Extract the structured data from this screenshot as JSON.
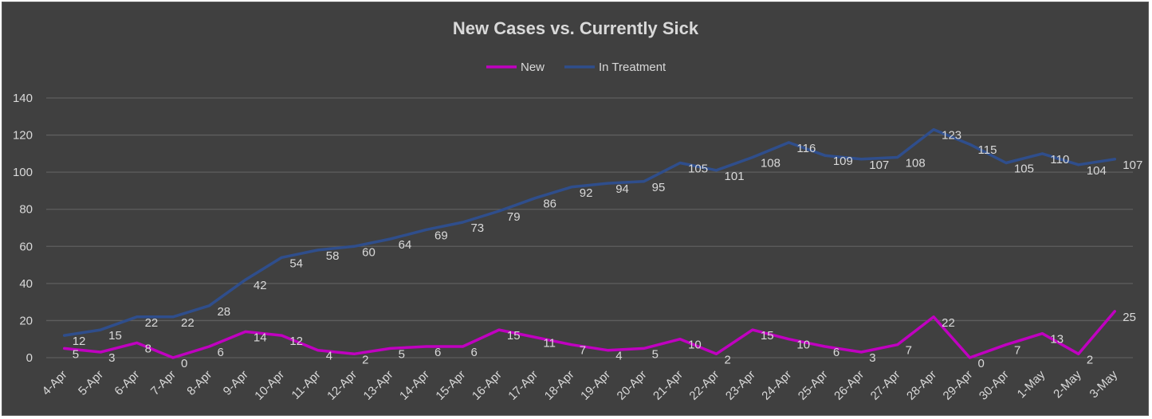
{
  "chart_data": {
    "type": "line",
    "title": "New Cases vs. Currently Sick",
    "xlabel": "",
    "ylabel": "",
    "ylim": [
      0,
      140
    ],
    "yticks": [
      0,
      20,
      40,
      60,
      80,
      100,
      120,
      140
    ],
    "grid": true,
    "legend_position": "top",
    "background": "#404040",
    "categories": [
      "4-Apr",
      "5-Apr",
      "6-Apr",
      "7-Apr",
      "8-Apr",
      "9-Apr",
      "10-Apr",
      "11-Apr",
      "12-Apr",
      "13-Apr",
      "14-Apr",
      "15-Apr",
      "16-Apr",
      "17-Apr",
      "18-Apr",
      "19-Apr",
      "20-Apr",
      "21-Apr",
      "22-Apr",
      "23-Apr",
      "24-Apr",
      "25-Apr",
      "26-Apr",
      "27-Apr",
      "28-Apr",
      "29-Apr",
      "30-Apr",
      "1-May",
      "2-May",
      "3-May"
    ],
    "series": [
      {
        "name": "New",
        "color": "#c000c0",
        "values": [
          5,
          3,
          8,
          0,
          6,
          14,
          12,
          4,
          2,
          5,
          6,
          6,
          15,
          11,
          7,
          4,
          5,
          10,
          2,
          15,
          10,
          6,
          3,
          7,
          22,
          0,
          7,
          13,
          2,
          25
        ]
      },
      {
        "name": "In Treatment",
        "color": "#2f4e8c",
        "values": [
          12,
          15,
          22,
          22,
          28,
          42,
          54,
          58,
          60,
          64,
          69,
          73,
          79,
          86,
          92,
          94,
          95,
          105,
          101,
          108,
          116,
          109,
          107,
          108,
          123,
          115,
          105,
          110,
          104,
          107
        ]
      }
    ]
  }
}
